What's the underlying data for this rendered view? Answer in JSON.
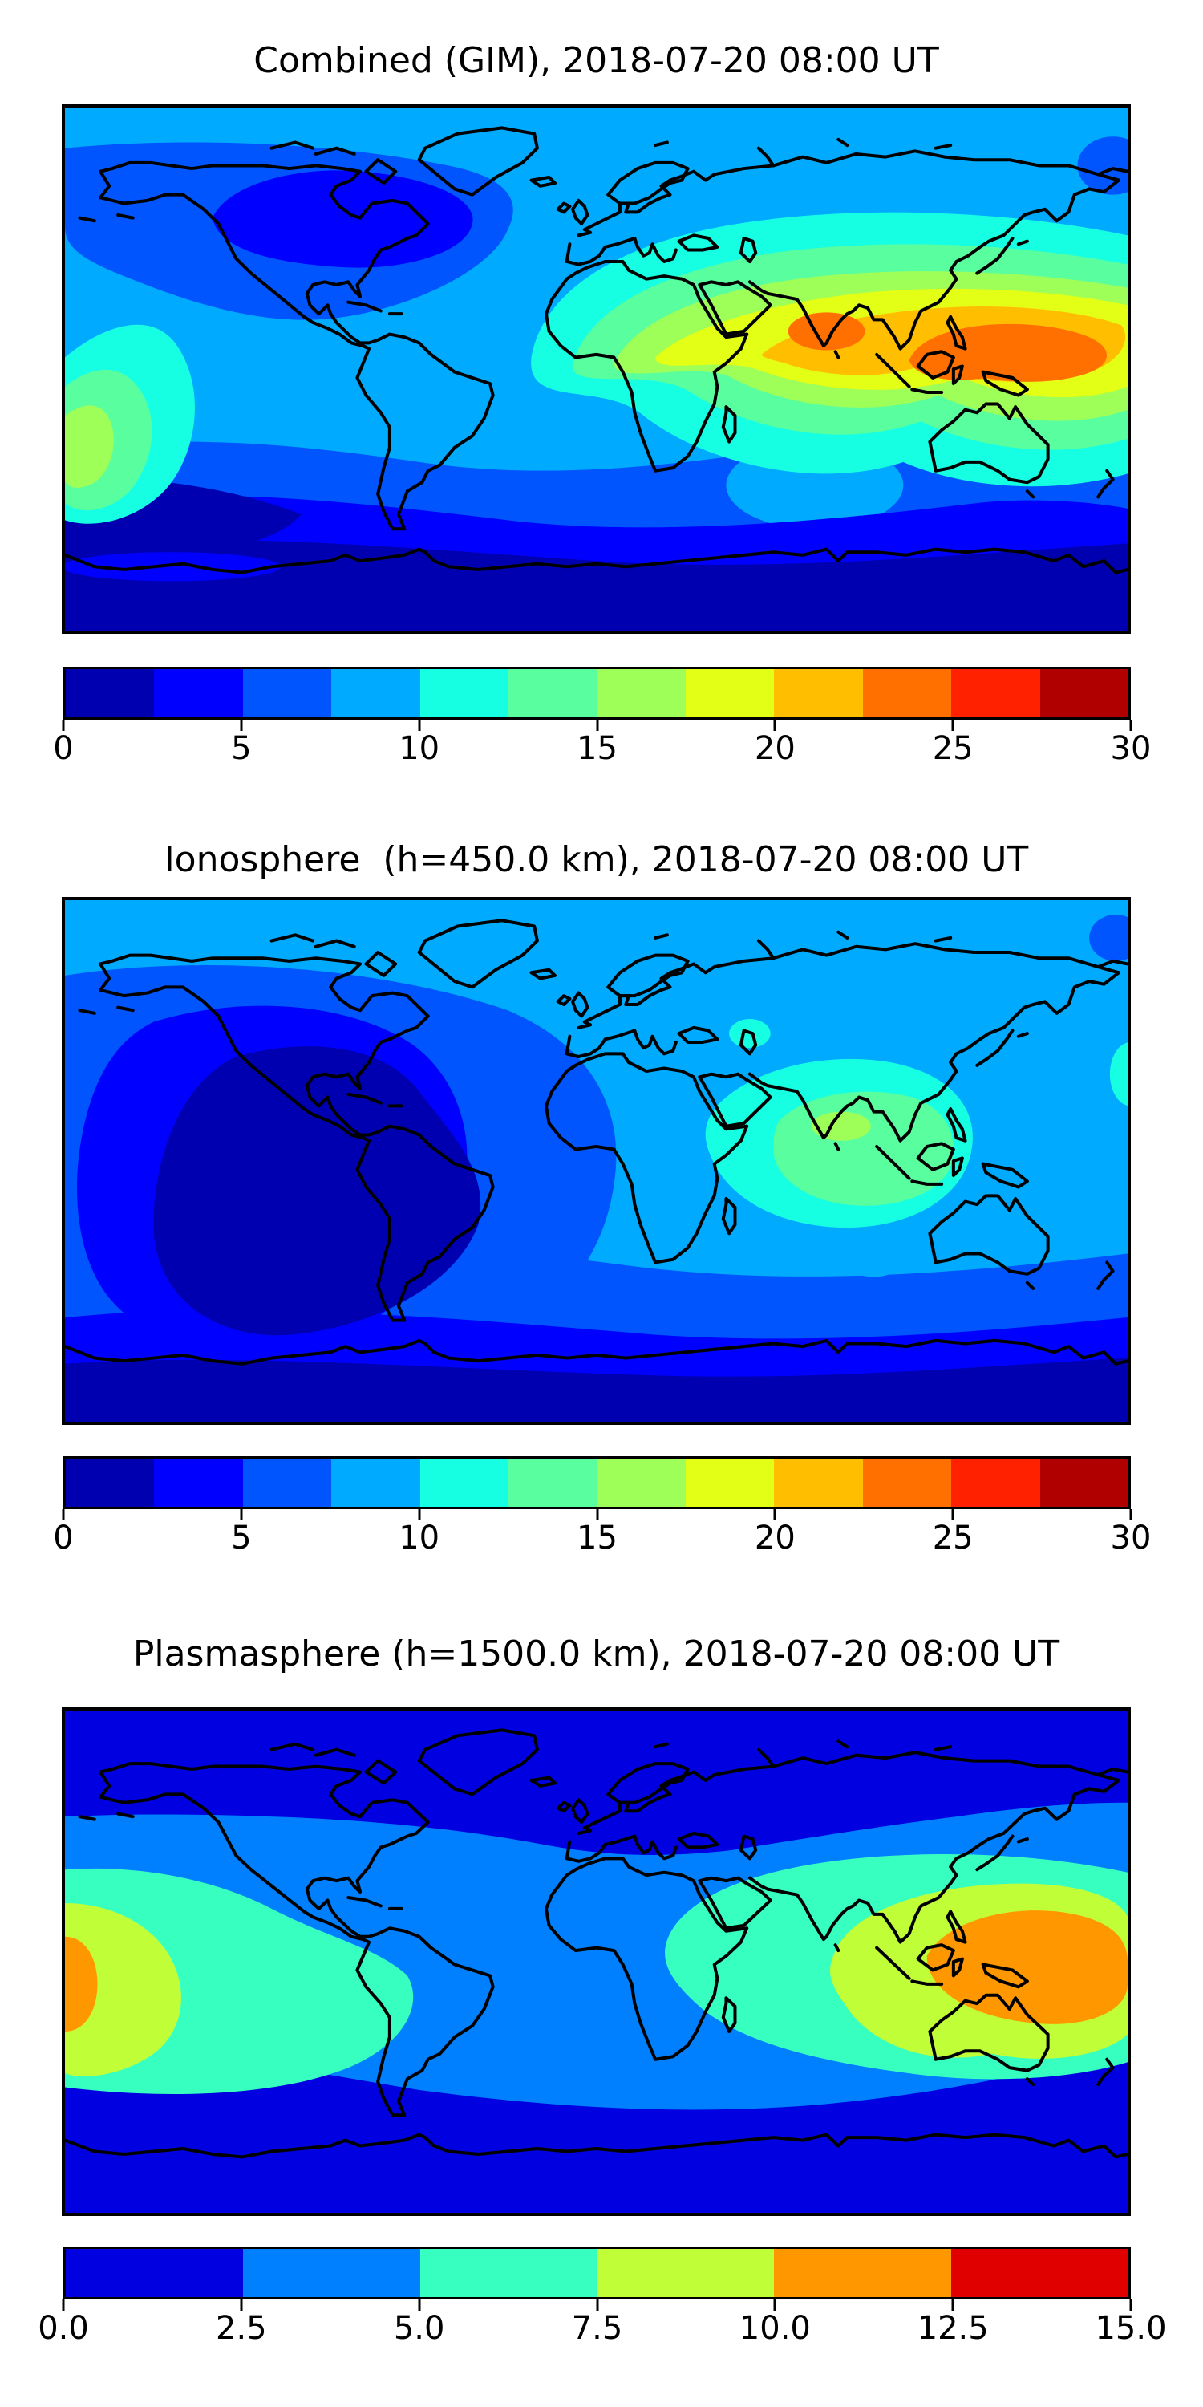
{
  "panels": [
    {
      "id": "combined",
      "title": "Combined (GIM), 2018-07-20 08:00 UT",
      "colorbar": {
        "min": 0,
        "max": 30,
        "ticks": [
          "0",
          "5",
          "10",
          "15",
          "20",
          "25",
          "30"
        ],
        "segment_colors": [
          "#0000B0",
          "#0000FF",
          "#0055FF",
          "#00AAFF",
          "#16FFE2",
          "#59FF9E",
          "#9EFF59",
          "#E2FF15",
          "#FFBE00",
          "#FF7000",
          "#FF2100",
          "#B10000"
        ]
      }
    },
    {
      "id": "ionosphere",
      "title": "Ionosphere  (h=450.0 km), 2018-07-20 08:00 UT",
      "colorbar": {
        "min": 0,
        "max": 30,
        "ticks": [
          "0",
          "5",
          "10",
          "15",
          "20",
          "25",
          "30"
        ],
        "segment_colors": [
          "#0000B0",
          "#0000FF",
          "#0055FF",
          "#00AAFF",
          "#16FFE2",
          "#59FF9E",
          "#9EFF59",
          "#E2FF15",
          "#FFBE00",
          "#FF7000",
          "#FF2100",
          "#B10000"
        ]
      }
    },
    {
      "id": "plasmasphere",
      "title": "Plasmasphere (h=1500.0 km), 2018-07-20 08:00 UT",
      "colorbar": {
        "min": 0.0,
        "max": 15.0,
        "ticks": [
          "0.0",
          "2.5",
          "5.0",
          "7.5",
          "10.0",
          "12.5",
          "15.0"
        ],
        "segment_colors": [
          "#0000E0",
          "#0080FF",
          "#37FFC0",
          "#C0FF37",
          "#FF9700",
          "#E00000"
        ]
      }
    }
  ],
  "chart_data": [
    {
      "type": "heatmap",
      "subtype": "filled_contour_world_map",
      "title": "Combined (GIM), 2018-07-20 08:00 UT",
      "time": "2018-07-20 08:00 UT",
      "projection": "equirectangular, lon -180..180, lat -90..90, black coastlines",
      "colormap": "jet (12 discrete levels)",
      "levels": {
        "min": 0,
        "max": 30,
        "step": 2.5
      },
      "colorbar_ticks": [
        0,
        5,
        10,
        15,
        20,
        25,
        30
      ],
      "level_colors": [
        "#0000B0",
        "#0000FF",
        "#0055FF",
        "#00AAFF",
        "#16FFE2",
        "#59FF9E",
        "#9EFF59",
        "#E2FF15",
        "#FFBE00",
        "#FF7000",
        "#FF2100",
        "#B10000"
      ],
      "features": [
        "Primary maximum 20-25 (orange cores) over India and Southeast Asia / Philippines near 5-20N",
        "Surrounding yellow band 15-20 from West Africa across South Asia to the west Pacific",
        "Secondary maximum 12.5-17.5 at the +/-180 Pacific edge near the equator",
        "Minimum 0-2.5 (dark navy) at southern high latitudes / Antarctica",
        "Night-side low 2.5-7.5 (blue) over North America and the south Pacific"
      ]
    },
    {
      "type": "heatmap",
      "subtype": "filled_contour_world_map",
      "title": "Ionosphere  (h=450.0 km), 2018-07-20 08:00 UT",
      "time": "2018-07-20 08:00 UT",
      "projection": "equirectangular, lon -180..180, lat -90..90, black coastlines",
      "colormap": "jet (12 discrete levels)",
      "levels": {
        "min": 0,
        "max": 30,
        "step": 2.5
      },
      "colorbar_ticks": [
        0,
        5,
        10,
        15,
        20,
        25,
        30
      ],
      "level_colors": [
        "#0000B0",
        "#0000FF",
        "#0055FF",
        "#00AAFF",
        "#16FFE2",
        "#59FF9E",
        "#9EFF59",
        "#E2FF15",
        "#FFBE00",
        "#FF7000",
        "#FF2100",
        "#B10000"
      ],
      "features": [
        "Maximum 10-12.5 (small yellow-green spot) over western India",
        "Broad 7.5-10 cyan/green patch over South Asia and Indian Ocean",
        "Small cyan spot near the Caspian Sea and at the right map edge ~25-35N",
        "Deep minimum 0-2.5 (dark navy) over the Americas and west Atlantic (night side)",
        "Dark navy band at southern high latitudes; light-blue spot ~(95E, -33S)"
      ]
    },
    {
      "type": "heatmap",
      "subtype": "filled_contour_world_map",
      "title": "Plasmasphere (h=1500.0 km), 2018-07-20 08:00 UT",
      "time": "2018-07-20 08:00 UT",
      "projection": "equirectangular, lon -180..180, lat -90..90, black coastlines",
      "colormap": "jet (6 discrete levels)",
      "levels": {
        "min": 0,
        "max": 15,
        "step": 2.5
      },
      "colorbar_ticks": [
        0.0,
        2.5,
        5.0,
        7.5,
        10.0,
        12.5,
        15.0
      ],
      "level_colors": [
        "#0000E0",
        "#0080FF",
        "#37FFC0",
        "#C0FF37",
        "#FF9700",
        "#E00000"
      ],
      "features": [
        "Orange maximum 10-12.5 over the Maritime Continent / west Pacific (~115E-180E, 10N-25S)",
        "Second orange sliver at the -180 left edge near the equator",
        "Yellow-green 7.5-10 equatorial lobes on both Pacific sides",
        "Turquoise 5-7.5 equatorial belt, pinched over the Atlantic/Africa",
        "Dark blue 0-2.5 bands at high latitudes of both hemispheres (dips over Europe)"
      ]
    }
  ]
}
